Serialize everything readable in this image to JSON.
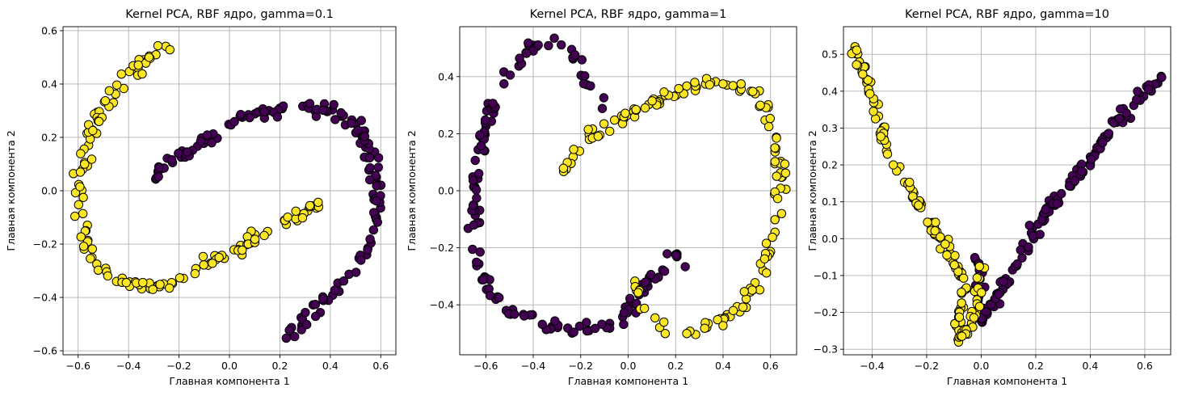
{
  "chart_data": [
    {
      "type": "scatter",
      "title": "Kernel PCA, RBF ядро, gamma=0.1",
      "xlabel": "Главная компонента 1",
      "ylabel": "Главная компонента 2",
      "xlim": [
        -0.66,
        0.66
      ],
      "ylim": [
        -0.615,
        0.615
      ],
      "xticks": [
        -0.6,
        -0.4,
        -0.2,
        0.0,
        0.2,
        0.4,
        0.6
      ],
      "yticks": [
        -0.6,
        -0.4,
        -0.2,
        0.0,
        0.2,
        0.4,
        0.6
      ],
      "grid": true,
      "colors": {
        "class_0": "#440154",
        "class_1": "#fde725",
        "edge": "#000000"
      },
      "series": [
        {
          "class": 0,
          "segments": [
            {
              "points": [
                [
                  -0.3,
                  0.06
                ],
                [
                  -0.2,
                  0.12
                ],
                [
                  -0.05,
                  0.22
                ],
                [
                  0.1,
                  0.28
                ],
                [
                  0.25,
                  0.32
                ],
                [
                  0.4,
                  0.3
                ],
                [
                  0.5,
                  0.25
                ],
                [
                  0.55,
                  0.18
                ],
                [
                  0.58,
                  0.05
                ],
                [
                  0.59,
                  -0.05
                ],
                [
                  0.55,
                  -0.2
                ],
                [
                  0.5,
                  -0.3
                ],
                [
                  0.42,
                  -0.38
                ],
                [
                  0.32,
                  -0.46
                ],
                [
                  0.23,
                  -0.55
                ]
              ],
              "n": 150,
              "spread": 0.012
            }
          ]
        },
        {
          "class": 1,
          "segments": [
            {
              "points": [
                [
                  -0.24,
                  0.55
                ],
                [
                  -0.35,
                  0.48
                ],
                [
                  -0.45,
                  0.38
                ],
                [
                  -0.52,
                  0.3
                ],
                [
                  -0.56,
                  0.18
                ],
                [
                  -0.59,
                  0.05
                ],
                [
                  -0.59,
                  -0.05
                ],
                [
                  -0.57,
                  -0.2
                ],
                [
                  -0.53,
                  -0.28
                ],
                [
                  -0.45,
                  -0.33
                ],
                [
                  -0.35,
                  -0.35
                ],
                [
                  -0.25,
                  -0.35
                ],
                [
                  -0.18,
                  -0.33
                ],
                [
                  -0.1,
                  -0.28
                ],
                [
                  -0.03,
                  -0.24
                ],
                [
                  0.05,
                  -0.21
                ],
                [
                  0.12,
                  -0.16
                ],
                [
                  0.22,
                  -0.12
                ],
                [
                  0.3,
                  -0.08
                ],
                [
                  0.35,
                  -0.03
                ]
              ],
              "n": 150,
              "spread": 0.012
            }
          ]
        }
      ]
    },
    {
      "type": "scatter",
      "title": "Kernel PCA, RBF ядро, gamma=1",
      "xlabel": "Главная компонента 1",
      "ylabel": "Главная компонента 2",
      "xlim": [
        -0.71,
        0.71
      ],
      "ylim": [
        -0.575,
        0.575
      ],
      "xticks": [
        -0.6,
        -0.4,
        -0.2,
        0.0,
        0.2,
        0.4,
        0.6
      ],
      "yticks": [
        -0.4,
        -0.2,
        0.0,
        0.2,
        0.4
      ],
      "grid": true,
      "colors": {
        "class_0": "#440154",
        "class_1": "#fde725",
        "edge": "#000000"
      },
      "series": [
        {
          "class": 0,
          "segments": [
            {
              "points": [
                [
                  -0.1,
                  0.25
                ],
                [
                  -0.15,
                  0.35
                ],
                [
                  -0.22,
                  0.47
                ],
                [
                  -0.3,
                  0.53
                ],
                [
                  -0.4,
                  0.5
                ],
                [
                  -0.48,
                  0.43
                ],
                [
                  -0.56,
                  0.33
                ],
                [
                  -0.61,
                  0.2
                ],
                [
                  -0.64,
                  0.05
                ],
                [
                  -0.65,
                  -0.1
                ],
                [
                  -0.63,
                  -0.25
                ],
                [
                  -0.58,
                  -0.35
                ],
                [
                  -0.5,
                  -0.42
                ],
                [
                  -0.38,
                  -0.46
                ],
                [
                  -0.25,
                  -0.48
                ],
                [
                  -0.12,
                  -0.48
                ],
                [
                  -0.02,
                  -0.44
                ],
                [
                  0.05,
                  -0.36
                ],
                [
                  0.1,
                  -0.3
                ],
                [
                  0.16,
                  -0.25
                ],
                [
                  0.22,
                  -0.24
                ],
                [
                  0.28,
                  -0.24
                ]
              ],
              "n": 150,
              "spread": 0.012
            }
          ]
        },
        {
          "class": 1,
          "segments": [
            {
              "points": [
                [
                  -0.28,
                  0.05
                ],
                [
                  -0.22,
                  0.14
                ],
                [
                  -0.15,
                  0.2
                ],
                [
                  -0.08,
                  0.22
                ],
                [
                  0.0,
                  0.27
                ],
                [
                  0.1,
                  0.3
                ],
                [
                  0.2,
                  0.34
                ],
                [
                  0.3,
                  0.37
                ],
                [
                  0.4,
                  0.38
                ],
                [
                  0.5,
                  0.36
                ],
                [
                  0.57,
                  0.3
                ],
                [
                  0.62,
                  0.18
                ],
                [
                  0.64,
                  0.05
                ],
                [
                  0.63,
                  -0.08
                ],
                [
                  0.6,
                  -0.2
                ],
                [
                  0.55,
                  -0.32
                ],
                [
                  0.48,
                  -0.4
                ],
                [
                  0.4,
                  -0.45
                ],
                [
                  0.3,
                  -0.49
                ],
                [
                  0.2,
                  -0.49
                ],
                [
                  0.12,
                  -0.46
                ],
                [
                  0.05,
                  -0.38
                ],
                [
                  0.03,
                  -0.3
                ]
              ],
              "n": 150,
              "spread": 0.012
            }
          ]
        }
      ]
    },
    {
      "type": "scatter",
      "title": "Kernel PCA, RBF ядро, gamma=10",
      "xlabel": "Главная компонента 1",
      "ylabel": "Главная компонента 2",
      "xlim": [
        -0.505,
        0.695
      ],
      "ylim": [
        -0.315,
        0.575
      ],
      "xticks": [
        -0.4,
        -0.2,
        0.0,
        0.2,
        0.4,
        0.6
      ],
      "yticks": [
        -0.3,
        -0.2,
        -0.1,
        0.0,
        0.1,
        0.2,
        0.3,
        0.4,
        0.5
      ],
      "grid": true,
      "colors": {
        "class_0": "#440154",
        "class_1": "#fde725",
        "edge": "#000000"
      },
      "series": [
        {
          "class": 0,
          "segments": [
            {
              "points": [
                [
                  0.65,
                  0.44
                ],
                [
                  0.58,
                  0.38
                ],
                [
                  0.5,
                  0.32
                ],
                [
                  0.42,
                  0.24
                ],
                [
                  0.35,
                  0.17
                ],
                [
                  0.28,
                  0.1
                ],
                [
                  0.22,
                  0.05
                ],
                [
                  0.18,
                  0.0
                ],
                [
                  0.14,
                  -0.06
                ],
                [
                  0.1,
                  -0.11
                ],
                [
                  0.06,
                  -0.16
                ],
                [
                  0.02,
                  -0.2
                ],
                [
                  0.0,
                  -0.22
                ],
                [
                  -0.01,
                  -0.17
                ],
                [
                  -0.01,
                  -0.1
                ],
                [
                  -0.01,
                  -0.06
                ]
              ],
              "n": 150,
              "spread": 0.008
            }
          ]
        },
        {
          "class": 1,
          "segments": [
            {
              "points": [
                [
                  -0.47,
                  0.53
                ],
                [
                  -0.44,
                  0.47
                ],
                [
                  -0.41,
                  0.4
                ],
                [
                  -0.38,
                  0.33
                ],
                [
                  -0.35,
                  0.25
                ],
                [
                  -0.3,
                  0.18
                ],
                [
                  -0.25,
                  0.12
                ],
                [
                  -0.2,
                  0.06
                ],
                [
                  -0.16,
                  0.01
                ],
                [
                  -0.12,
                  -0.04
                ],
                [
                  -0.08,
                  -0.09
                ],
                [
                  -0.06,
                  -0.14
                ],
                [
                  -0.07,
                  -0.19
                ],
                [
                  -0.09,
                  -0.24
                ],
                [
                  -0.08,
                  -0.27
                ],
                [
                  -0.05,
                  -0.25
                ],
                [
                  -0.02,
                  -0.2
                ],
                [
                  -0.01,
                  -0.14
                ],
                [
                  -0.01,
                  -0.08
                ]
              ],
              "n": 150,
              "spread": 0.008
            }
          ]
        }
      ]
    }
  ]
}
